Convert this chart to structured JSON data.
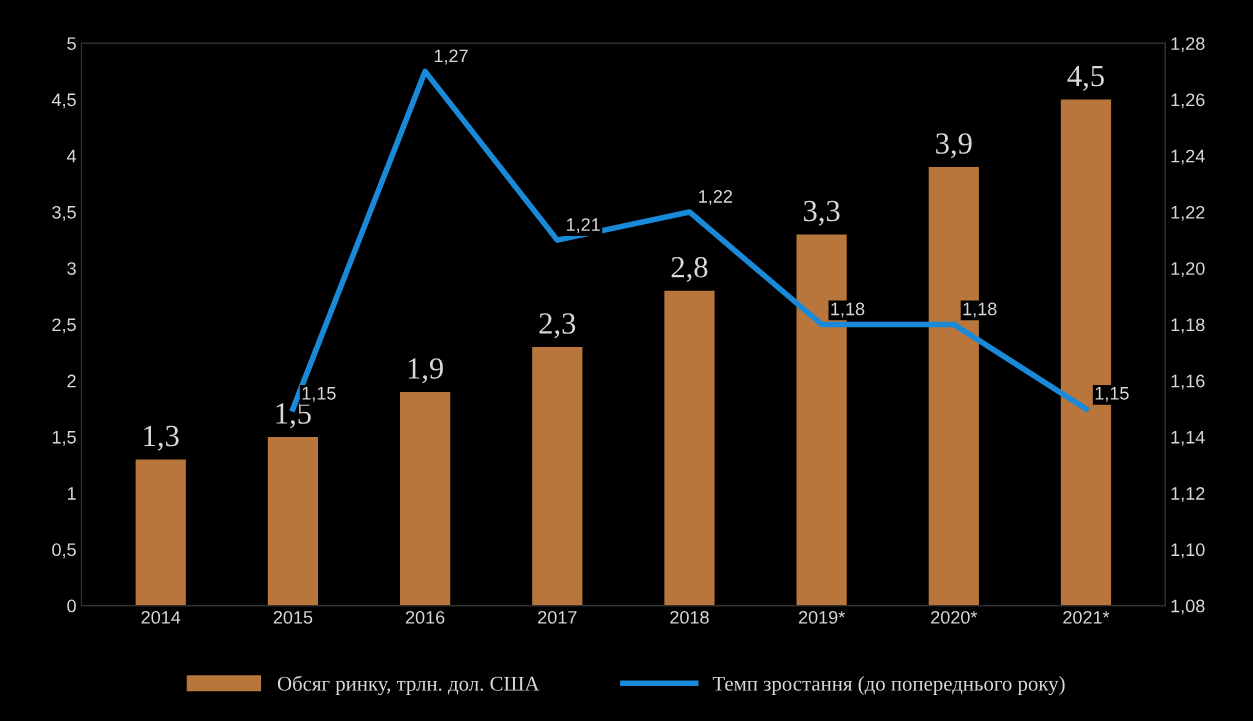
{
  "chart_data": {
    "type": "bar",
    "categories": [
      "2014",
      "2015",
      "2016",
      "2017",
      "2018",
      "2019*",
      "2020*",
      "2021*"
    ],
    "series": [
      {
        "name": "Обсяг ринку, трлн. дол. США",
        "color": "#b8763c",
        "values": [
          1.3,
          1.5,
          1.9,
          2.3,
          2.8,
          3.3,
          3.9,
          4.5
        ],
        "value_labels": [
          "1,3",
          "1,5",
          "1,9",
          "2,3",
          "2,8",
          "3,3",
          "3,9",
          "4,5"
        ]
      },
      {
        "name": "Темп зростання (до попереднього року)",
        "type": "line",
        "axis": "y2",
        "color": "#1a8ad8",
        "values": [
          null,
          1.15,
          1.27,
          1.21,
          1.22,
          1.18,
          1.18,
          1.15
        ],
        "value_labels": [
          null,
          "1,15",
          "1,27",
          "1,21",
          "1,22",
          "1,18",
          "1,18",
          "1,15"
        ]
      }
    ],
    "ylim": [
      0,
      5
    ],
    "yticks": [
      0,
      {
        "value": 0.5,
        "label": "0,5"
      },
      1,
      {
        "value": 1.5,
        "label": "1,5"
      },
      2,
      {
        "value": 2.5,
        "label": "2,5"
      },
      3,
      {
        "value": 3.5,
        "label": "3,5"
      },
      4,
      {
        "value": 4.5,
        "label": "4,5"
      },
      5
    ],
    "y2lim": [
      1.08,
      1.28
    ],
    "y2ticks": [
      {
        "value": 1.08,
        "label": "1,08"
      },
      {
        "value": 1.1,
        "label": "1,10"
      },
      {
        "value": 1.12,
        "label": "1,12"
      },
      {
        "value": 1.14,
        "label": "1,14"
      },
      {
        "value": 1.16,
        "label": "1,16"
      },
      {
        "value": 1.18,
        "label": "1,18"
      },
      {
        "value": 1.2,
        "label": "1,20"
      },
      {
        "value": 1.22,
        "label": "1,22"
      },
      {
        "value": 1.24,
        "label": "1,24"
      },
      {
        "value": 1.26,
        "label": "1,26"
      },
      {
        "value": 1.28,
        "label": "1,28"
      }
    ],
    "grid": false,
    "legend": "bottom",
    "marker": "none",
    "line_style": "solid"
  }
}
